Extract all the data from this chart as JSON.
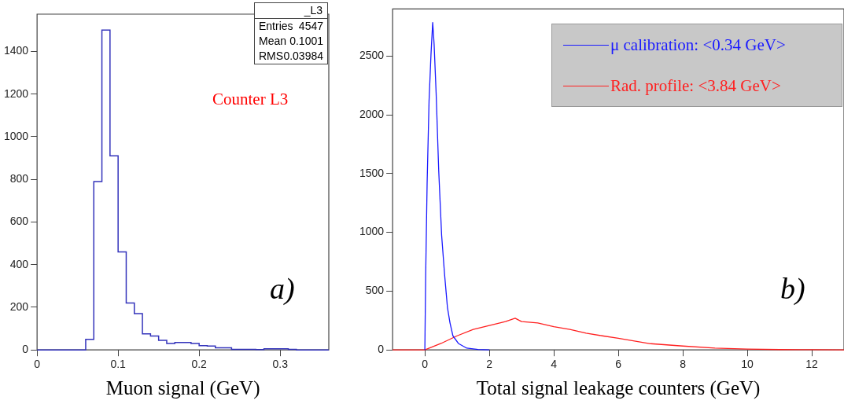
{
  "chart_data": [
    {
      "type": "histogram",
      "xlabel": "Muon signal (GeV)",
      "bins": [
        0,
        0.01,
        0.02,
        0.03,
        0.04,
        0.05,
        0.06,
        0.07,
        0.08,
        0.09,
        0.1,
        0.11,
        0.12,
        0.13,
        0.14,
        0.15,
        0.16,
        0.17,
        0.18,
        0.19,
        0.2,
        0.21,
        0.22,
        0.23,
        0.24,
        0.25,
        0.26,
        0.27,
        0.28,
        0.29,
        0.3,
        0.31,
        0.32,
        0.33,
        0.34,
        0.35,
        0.36
      ],
      "values": [
        0,
        0,
        0,
        0,
        0,
        0,
        50,
        790,
        1500,
        910,
        460,
        220,
        170,
        75,
        65,
        45,
        30,
        35,
        35,
        30,
        20,
        18,
        10,
        10,
        3,
        3,
        3,
        2,
        5,
        5,
        5,
        3,
        0,
        0,
        0,
        0
      ],
      "color": "#3333bb",
      "xlim": [
        0,
        0.36
      ],
      "ylim": [
        0,
        1575
      ],
      "xticks": [
        0,
        0.1,
        0.2,
        0.3
      ],
      "yticks": [
        0,
        200,
        400,
        600,
        800,
        1000,
        1200,
        1400
      ],
      "grid": false,
      "legend": false,
      "annotations": [
        "_L3",
        "Entries",
        "4547",
        "Mean",
        "0.1001",
        "RMS",
        "0.03984",
        "Counter L3",
        "a)"
      ]
    },
    {
      "type": "line",
      "xlabel": "Total signal leakage counters (GeV)",
      "series": [
        {
          "name": "μ calibration: <0.34 GeV>",
          "color": "#1a1aff",
          "x": [
            0,
            0.026,
            0.07,
            0.13,
            0.19,
            0.243,
            0.287,
            0.35,
            0.43,
            0.52,
            0.61,
            0.7,
            0.78,
            0.87,
            1.04,
            1.3,
            1.65,
            2
          ],
          "values": [
            0,
            647,
            1414,
            2116,
            2511,
            2785,
            2600,
            2182,
            1524,
            976,
            647,
            362,
            230,
            120,
            55,
            15,
            4,
            0
          ]
        },
        {
          "name": "Rad. profile: <3.84 GeV>",
          "color": "#ff2020",
          "x": [
            -1,
            0,
            0.5,
            1,
            1.5,
            2,
            2.5,
            2.8,
            3,
            3.5,
            4,
            4.5,
            5,
            5.5,
            6,
            7,
            8,
            9,
            10,
            11,
            12,
            13
          ],
          "values": [
            0,
            0,
            55,
            120,
            175,
            208,
            241,
            270,
            241,
            230,
            197,
            175,
            143,
            120,
            99,
            53,
            33,
            15,
            7,
            3,
            2,
            1
          ]
        }
      ],
      "xlim": [
        -1,
        13
      ],
      "ylim": [
        0,
        2900
      ],
      "xticks": [
        0,
        2,
        4,
        6,
        8,
        10,
        12
      ],
      "yticks": [
        0,
        500,
        1000,
        1500,
        2000,
        2500
      ],
      "grid": false,
      "legend": "top right",
      "marker": "none",
      "line_style": "solid",
      "annotations": [
        "b)"
      ]
    }
  ]
}
